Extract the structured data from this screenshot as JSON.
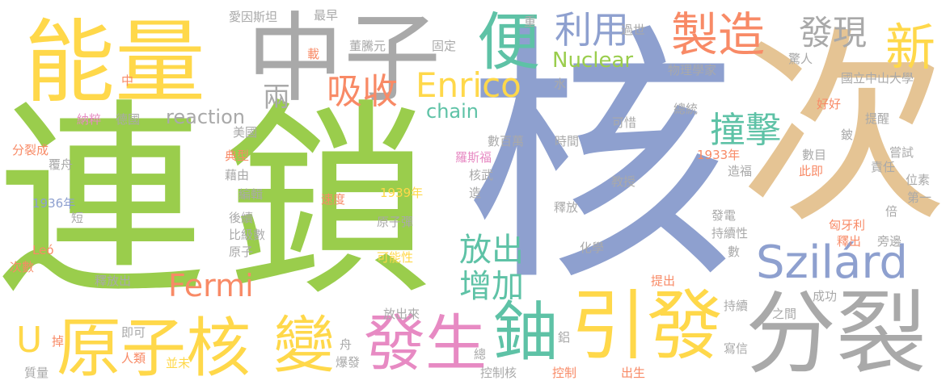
{
  "palette": {
    "green": "#9ACD4C",
    "blue": "#8EA0CF",
    "yellow": "#FFD84A",
    "gray": "#A9A9A9",
    "orange": "#F88A66",
    "teal": "#5EC2A6",
    "pink": "#E78AC3",
    "tan": "#E5C494"
  },
  "words": [
    {
      "text": "連",
      "color": "green"
    },
    {
      "text": "鎖",
      "color": "green"
    },
    {
      "text": "核",
      "color": "blue"
    },
    {
      "text": "次",
      "color": "tan"
    },
    {
      "text": "能量",
      "color": "yellow"
    },
    {
      "text": "中子",
      "color": "gray"
    },
    {
      "text": "便",
      "color": "teal"
    },
    {
      "text": "利用",
      "color": "blue"
    },
    {
      "text": "製造",
      "color": "orange"
    },
    {
      "text": "發現",
      "color": "gray"
    },
    {
      "text": "新",
      "color": "yellow"
    },
    {
      "text": "分裂",
      "color": "gray"
    },
    {
      "text": "引發",
      "color": "yellow"
    },
    {
      "text": "鈾",
      "color": "teal"
    },
    {
      "text": "發生",
      "color": "pink"
    },
    {
      "text": "變",
      "color": "yellow"
    },
    {
      "text": "原子核",
      "color": "yellow"
    },
    {
      "text": "U",
      "color": "yellow"
    },
    {
      "text": "Szilárd",
      "color": "blue"
    },
    {
      "text": "Enrico",
      "color": "yellow"
    },
    {
      "text": "吸收",
      "color": "orange"
    },
    {
      "text": "兩",
      "color": "gray"
    },
    {
      "text": "撞擊",
      "color": "teal"
    },
    {
      "text": "放出",
      "color": "teal"
    },
    {
      "text": "增加",
      "color": "teal"
    },
    {
      "text": "Fermi",
      "color": "orange"
    },
    {
      "text": "Nuclear",
      "color": "green"
    },
    {
      "text": "chain",
      "color": "teal"
    },
    {
      "text": "reaction",
      "color": "gray"
    },
    {
      "text": "愛因斯坦",
      "color": "gray"
    },
    {
      "text": "最早",
      "color": "gray"
    },
    {
      "text": "重",
      "color": "gray"
    },
    {
      "text": "過世",
      "color": "gray"
    },
    {
      "text": "載",
      "color": "orange"
    },
    {
      "text": "董騰元",
      "color": "gray"
    },
    {
      "text": "固定",
      "color": "gray"
    },
    {
      "text": "物理學家",
      "color": "gray"
    },
    {
      "text": "驚人",
      "color": "gray"
    },
    {
      "text": "國立中山大學",
      "color": "gray"
    },
    {
      "text": "中",
      "color": "orange"
    },
    {
      "text": "水",
      "color": "gray"
    },
    {
      "text": "總統",
      "color": "gray"
    },
    {
      "text": "好好",
      "color": "orange"
    },
    {
      "text": "納粹",
      "color": "pink"
    },
    {
      "text": "德國",
      "color": "gray"
    },
    {
      "text": "美國",
      "color": "gray"
    },
    {
      "text": "可惜",
      "color": "gray"
    },
    {
      "text": "提醒",
      "color": "gray"
    },
    {
      "text": "分裂成",
      "color": "orange"
    },
    {
      "text": "覆舟",
      "color": "gray"
    },
    {
      "text": "數百萬",
      "color": "gray"
    },
    {
      "text": "時間",
      "color": "gray"
    },
    {
      "text": "羅斯福",
      "color": "pink"
    },
    {
      "text": "鈹",
      "color": "gray"
    },
    {
      "text": "典型",
      "color": "orange"
    },
    {
      "text": "1933年",
      "color": "orange"
    },
    {
      "text": "數目",
      "color": "gray"
    },
    {
      "text": "嘗試",
      "color": "gray"
    },
    {
      "text": "藉由",
      "color": "gray"
    },
    {
      "text": "核武",
      "color": "gray"
    },
    {
      "text": "造福",
      "color": "gray"
    },
    {
      "text": "責任",
      "color": "gray"
    },
    {
      "text": "此即",
      "color": "orange"
    },
    {
      "text": "1939年",
      "color": "yellow"
    },
    {
      "text": "教授",
      "color": "gray"
    },
    {
      "text": "位素",
      "color": "gray"
    },
    {
      "text": "1936年",
      "color": "blue"
    },
    {
      "text": "編輯",
      "color": "gray"
    },
    {
      "text": "速度",
      "color": "orange"
    },
    {
      "text": "造",
      "color": "gray"
    },
    {
      "text": "第一",
      "color": "gray"
    },
    {
      "text": "短",
      "color": "gray"
    },
    {
      "text": "後續",
      "color": "gray"
    },
    {
      "text": "原子彈",
      "color": "gray"
    },
    {
      "text": "釋放",
      "color": "gray"
    },
    {
      "text": "發電",
      "color": "gray"
    },
    {
      "text": "倍",
      "color": "gray"
    },
    {
      "text": "匈牙利",
      "color": "orange"
    },
    {
      "text": "比級數",
      "color": "gray"
    },
    {
      "text": "持續性",
      "color": "gray"
    },
    {
      "text": "釋出",
      "color": "orange"
    },
    {
      "text": "旁邊",
      "color": "gray"
    },
    {
      "text": "Leó",
      "color": "orange"
    },
    {
      "text": "原子",
      "color": "gray"
    },
    {
      "text": "化學",
      "color": "gray"
    },
    {
      "text": "可能性",
      "color": "yellow"
    },
    {
      "text": "數",
      "color": "gray"
    },
    {
      "text": "次數",
      "color": "orange"
    },
    {
      "text": "釋放出",
      "color": "gray"
    },
    {
      "text": "提出",
      "color": "orange"
    },
    {
      "text": "成功",
      "color": "gray"
    },
    {
      "text": "持續",
      "color": "gray"
    },
    {
      "text": "放出來",
      "color": "gray"
    },
    {
      "text": "之間",
      "color": "gray"
    },
    {
      "text": "即可",
      "color": "gray"
    },
    {
      "text": "掉",
      "color": "orange"
    },
    {
      "text": "舟",
      "color": "gray"
    },
    {
      "text": "鋁",
      "color": "gray"
    },
    {
      "text": "人類",
      "color": "orange"
    },
    {
      "text": "並未",
      "color": "yellow"
    },
    {
      "text": "總",
      "color": "gray"
    },
    {
      "text": "寫信",
      "color": "gray"
    },
    {
      "text": "爆發",
      "color": "gray"
    },
    {
      "text": "質量",
      "color": "gray"
    },
    {
      "text": "控制核",
      "color": "gray"
    },
    {
      "text": "控制",
      "color": "orange"
    },
    {
      "text": "出生",
      "color": "orange"
    }
  ]
}
